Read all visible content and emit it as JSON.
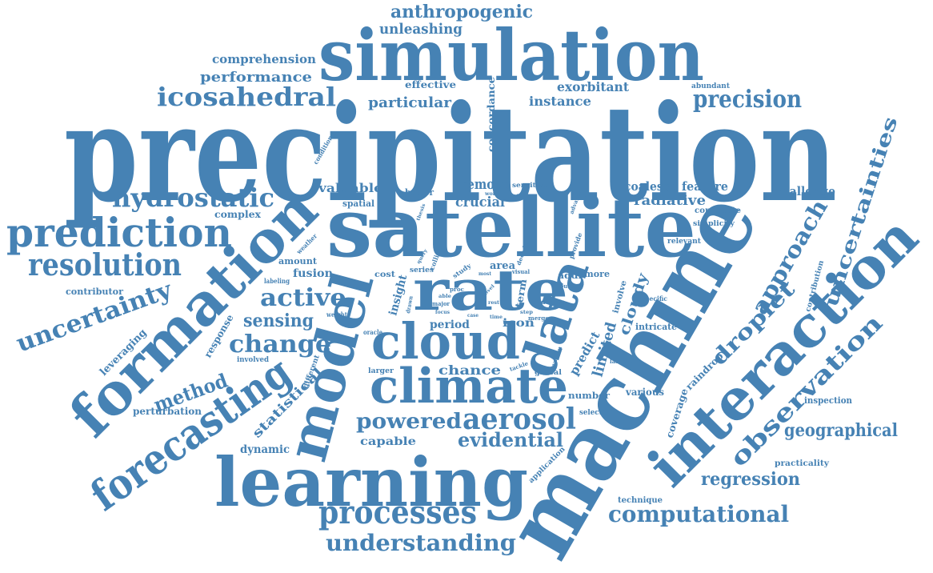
{
  "word_cloud": {
    "color": "#4682b4",
    "words": [
      {
        "text": "precipitation"
      },
      {
        "text": "machine"
      },
      {
        "text": "satellite"
      },
      {
        "text": "simulation"
      },
      {
        "text": "learning"
      },
      {
        "text": "interaction"
      },
      {
        "text": "formation"
      },
      {
        "text": "model"
      },
      {
        "text": "cloud"
      },
      {
        "text": "climate"
      },
      {
        "text": "rate"
      },
      {
        "text": "data"
      },
      {
        "text": "forecasting"
      },
      {
        "text": "prediction"
      },
      {
        "text": "resolution"
      },
      {
        "text": "processes"
      },
      {
        "text": "hydrostatic"
      },
      {
        "text": "icosahedral"
      },
      {
        "text": "precision"
      },
      {
        "text": "aerosol"
      },
      {
        "text": "observation"
      },
      {
        "text": "approach"
      },
      {
        "text": "uncertainties"
      },
      {
        "text": "uncertainty"
      },
      {
        "text": "computational"
      },
      {
        "text": "understanding"
      },
      {
        "text": "anthropogenic"
      },
      {
        "text": "active"
      },
      {
        "text": "change"
      },
      {
        "text": "droplet"
      },
      {
        "text": "geographical"
      },
      {
        "text": "powered"
      },
      {
        "text": "evidential"
      },
      {
        "text": "regression"
      },
      {
        "text": "method"
      },
      {
        "text": "sensing"
      },
      {
        "text": "particular"
      },
      {
        "text": "unleashing"
      },
      {
        "text": "performance"
      },
      {
        "text": "comprehension"
      },
      {
        "text": "instance"
      },
      {
        "text": "exorbitant"
      },
      {
        "text": "remote"
      },
      {
        "text": "crucial"
      },
      {
        "text": "valuable"
      },
      {
        "text": "radiative"
      },
      {
        "text": "feature"
      },
      {
        "text": "coalesce"
      },
      {
        "text": "challenge"
      },
      {
        "text": "cloudy"
      },
      {
        "text": "limited"
      },
      {
        "text": "predict"
      },
      {
        "text": "chance"
      },
      {
        "text": "statistical"
      },
      {
        "text": "dynamic"
      },
      {
        "text": "capable"
      },
      {
        "text": "period"
      },
      {
        "text": "icon"
      },
      {
        "text": "fusion"
      },
      {
        "text": "amount"
      },
      {
        "text": "insight"
      },
      {
        "text": "concordance"
      },
      {
        "text": "effective"
      },
      {
        "text": "leveraging"
      },
      {
        "text": "perturbation"
      },
      {
        "text": "contributor"
      },
      {
        "text": "complex"
      },
      {
        "text": "response"
      },
      {
        "text": "raindrop"
      },
      {
        "text": "coverage"
      },
      {
        "text": "inspection"
      },
      {
        "text": "practicality"
      },
      {
        "text": "technique"
      },
      {
        "text": "number"
      },
      {
        "text": "various"
      },
      {
        "text": "selection"
      },
      {
        "text": "application"
      },
      {
        "text": "intricate"
      },
      {
        "text": "involve"
      },
      {
        "text": "contribution"
      },
      {
        "text": "constitute"
      },
      {
        "text": "simplicity"
      },
      {
        "text": "relevant"
      },
      {
        "text": "specific"
      },
      {
        "text": "abundant"
      },
      {
        "text": "spatial"
      },
      {
        "text": "better"
      },
      {
        "text": "area"
      },
      {
        "text": "term"
      },
      {
        "text": "addr"
      },
      {
        "text": "more"
      },
      {
        "text": "cost"
      },
      {
        "text": "series"
      },
      {
        "text": "study"
      },
      {
        "text": "sensitive"
      },
      {
        "text": "advance"
      },
      {
        "text": "provide"
      },
      {
        "text": "decade"
      },
      {
        "text": "collide"
      },
      {
        "text": "output"
      },
      {
        "text": "degree"
      },
      {
        "text": "visual"
      },
      {
        "text": "merge"
      },
      {
        "text": "global"
      },
      {
        "text": "system"
      },
      {
        "text": "tackle"
      },
      {
        "text": "largest"
      },
      {
        "text": "larger"
      },
      {
        "text": "involved"
      },
      {
        "text": "different"
      },
      {
        "text": "weight"
      },
      {
        "text": "oracle"
      },
      {
        "text": "labeling"
      },
      {
        "text": "weather"
      },
      {
        "text": "condition"
      },
      {
        "text": "drawn"
      },
      {
        "text": "major"
      },
      {
        "text": "focus"
      },
      {
        "text": "thesis"
      },
      {
        "text": "world"
      },
      {
        "text": "query"
      },
      {
        "text": "proc"
      },
      {
        "text": "most"
      },
      {
        "text": "novel"
      },
      {
        "text": "step"
      },
      {
        "text": "time"
      },
      {
        "text": "case"
      },
      {
        "text": "rest"
      },
      {
        "text": "able"
      }
    ]
  }
}
